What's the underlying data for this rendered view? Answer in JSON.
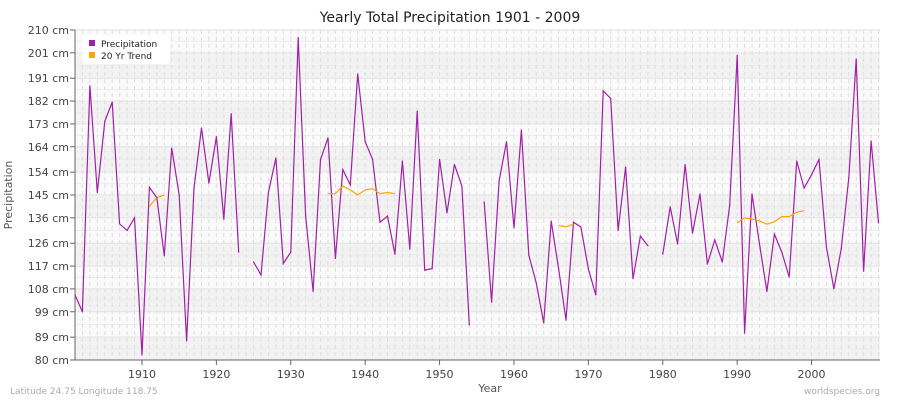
{
  "chart_data": {
    "type": "line",
    "title": "Yearly Total Precipitation 1901 - 2009",
    "xlabel": "Year",
    "ylabel": "Precipitation",
    "xlim": [
      1901,
      2009
    ],
    "ylim": [
      80,
      210
    ],
    "yticks": [
      80,
      89,
      99,
      108,
      117,
      126,
      136,
      145,
      154,
      164,
      173,
      182,
      191,
      201,
      210
    ],
    "ytick_labels": [
      "80 cm",
      "89 cm",
      "99 cm",
      "108 cm",
      "117 cm",
      "126 cm",
      "136 cm",
      "145 cm",
      "154 cm",
      "164 cm",
      "173 cm",
      "182 cm",
      "191 cm",
      "201 cm",
      "210 cm"
    ],
    "xticks": [
      1910,
      1920,
      1930,
      1940,
      1950,
      1960,
      1970,
      1980,
      1990,
      2000
    ],
    "xtick_labels": [
      "1910",
      "1920",
      "1930",
      "1940",
      "1950",
      "1960",
      "1970",
      "1980",
      "1990",
      "2000"
    ],
    "legend": {
      "position": "top-left",
      "entries": [
        "Precipitation",
        "20 Yr Trend"
      ]
    },
    "grid": true,
    "series": [
      {
        "name": "Precipitation",
        "color": "#a020a8",
        "start_year": 1901,
        "values": [
          105.6,
          99,
          188,
          146,
          174,
          181.6,
          133.6,
          131,
          136,
          82,
          148,
          144,
          121,
          163.5,
          145,
          87.5,
          147.7,
          171.4,
          149.7,
          168,
          135.5,
          177,
          122.5,
          null,
          118.6,
          113.5,
          146,
          159.6,
          118,
          122.5,
          207,
          137,
          107,
          159,
          167.5,
          120,
          155,
          149,
          192.7,
          166,
          159,
          134.3,
          136.7,
          121.7,
          158.4,
          123.7,
          178,
          115.4,
          116,
          159,
          138,
          157,
          148.5,
          93.8,
          null,
          142.2,
          102.8,
          150.5,
          166,
          132,
          170.6,
          121.3,
          110.3,
          94.6,
          134.7,
          116,
          95.7,
          134.3,
          132.4,
          115.8,
          105.6,
          186,
          183,
          131,
          156,
          112,
          128.8,
          125,
          null,
          121.7,
          140.3,
          125.7,
          157,
          130,
          145.4,
          117.8,
          127.3,
          118.6,
          141,
          200,
          90.6,
          145.4,
          125.7,
          107,
          129.6,
          122.5,
          112.7,
          158.4,
          147.7,
          153,
          159,
          124.5,
          108,
          124,
          151.7,
          198.6,
          115,
          166.3,
          134
        ]
      },
      {
        "name": "20 Yr Trend",
        "color": "#ffa500",
        "segments": [
          {
            "start_year": 1911,
            "values": [
              140.5,
              144,
              145
            ]
          },
          {
            "start_year": 1935,
            "values": [
              145.5,
              145.5,
              148.5,
              147,
              145,
              147,
              147.5,
              145.5,
              146,
              145.5
            ]
          },
          {
            "start_year": 1966,
            "values": [
              133,
              132.5,
              133.5
            ]
          },
          {
            "start_year": 1990,
            "values": [
              134,
              136,
              135.5,
              134.8,
              133.5,
              134.5,
              136.5,
              136.5,
              138.2,
              138.8
            ]
          }
        ]
      }
    ]
  },
  "footer": {
    "coords": "Latitude 24.75 Longitude 118.75",
    "site": "worldspecies.org"
  }
}
